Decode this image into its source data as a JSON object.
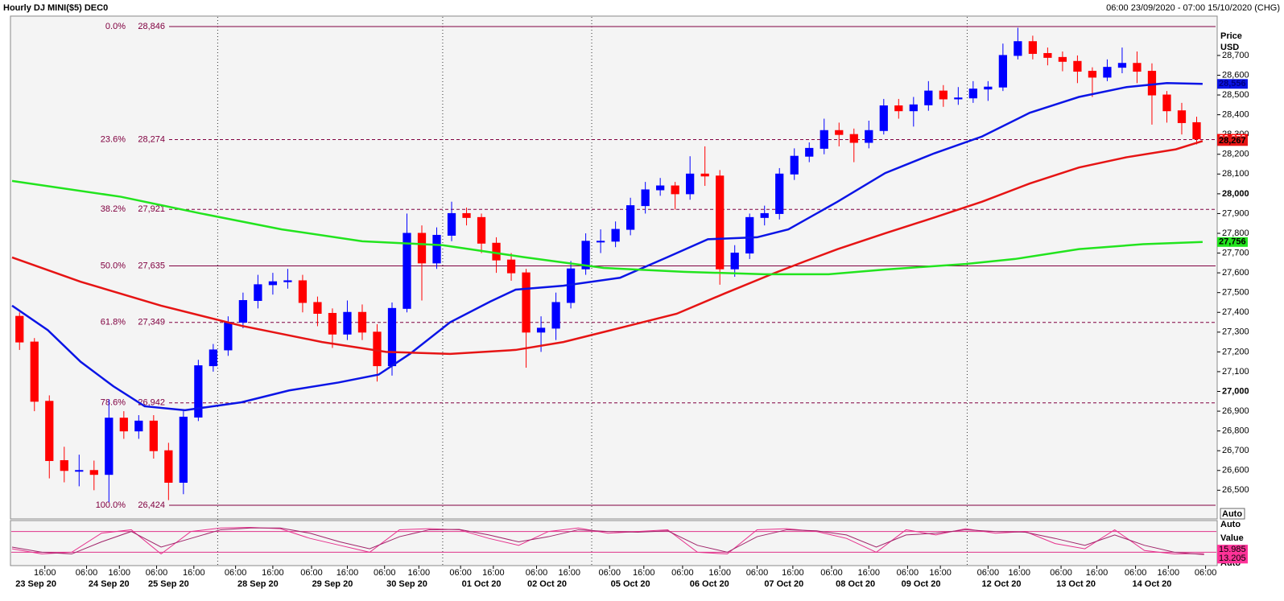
{
  "header": {
    "title": "Hourly DJ MINI($5) DEC0",
    "range": "06:00 23/09/2020 - 07:00 15/10/2020 (CHG)"
  },
  "chart_data": {
    "type": "candlestick",
    "axis_title": "Price",
    "axis_unit": "USD",
    "button": "Auto",
    "xlim": [
      0,
      80.5
    ],
    "ylim": [
      26367,
      28891
    ],
    "yticks": [
      {
        "value": 26500,
        "label": "26,500"
      },
      {
        "value": 26600,
        "label": "26,600"
      },
      {
        "value": 26700,
        "label": "26,700"
      },
      {
        "value": 26800,
        "label": "26,800"
      },
      {
        "value": 26900,
        "label": "26,900"
      },
      {
        "value": 27000,
        "label": "27,000"
      },
      {
        "value": 27100,
        "label": "27,100"
      },
      {
        "value": 27200,
        "label": "27,200"
      },
      {
        "value": 27300,
        "label": "27,300"
      },
      {
        "value": 27400,
        "label": "27,400"
      },
      {
        "value": 27500,
        "label": "27,500"
      },
      {
        "value": 27600,
        "label": "27,600"
      },
      {
        "value": 27700,
        "label": "27,700"
      },
      {
        "value": 27800,
        "label": "27,800"
      },
      {
        "value": 27900,
        "label": "27,900"
      },
      {
        "value": 28000,
        "label": "28,000"
      },
      {
        "value": 28100,
        "label": "28,100"
      },
      {
        "value": 28200,
        "label": "28,200"
      },
      {
        "value": 28300,
        "label": "28,300"
      },
      {
        "value": 28400,
        "label": "28,400"
      },
      {
        "value": 28500,
        "label": "28,500"
      },
      {
        "value": 28600,
        "label": "28,600"
      },
      {
        "value": 28700,
        "label": "28,700"
      }
    ],
    "xticks": [
      {
        "value": 2.2,
        "label": "16:00"
      },
      {
        "value": 5.0,
        "label": "06:00"
      },
      {
        "value": 7.2,
        "label": "16:00"
      },
      {
        "value": 9.7,
        "label": "06:00"
      },
      {
        "value": 12.2,
        "label": "16:00"
      },
      {
        "value": 15.0,
        "label": "06:00"
      },
      {
        "value": 17.5,
        "label": "16:00"
      },
      {
        "value": 20.1,
        "label": "06:00"
      },
      {
        "value": 22.5,
        "label": "16:00"
      },
      {
        "value": 25.0,
        "label": "06:00"
      },
      {
        "value": 27.3,
        "label": "16:00"
      },
      {
        "value": 30.1,
        "label": "06:00"
      },
      {
        "value": 32.3,
        "label": "16:00"
      },
      {
        "value": 35.2,
        "label": "06:00"
      },
      {
        "value": 37.4,
        "label": "16:00"
      },
      {
        "value": 40.1,
        "label": "06:00"
      },
      {
        "value": 42.4,
        "label": "16:00"
      },
      {
        "value": 45.0,
        "label": "06:00"
      },
      {
        "value": 47.5,
        "label": "16:00"
      },
      {
        "value": 50.0,
        "label": "06:00"
      },
      {
        "value": 52.4,
        "label": "16:00"
      },
      {
        "value": 55.0,
        "label": "06:00"
      },
      {
        "value": 57.5,
        "label": "16:00"
      },
      {
        "value": 60.1,
        "label": "06:00"
      },
      {
        "value": 62.3,
        "label": "16:00"
      },
      {
        "value": 65.5,
        "label": "06:00"
      },
      {
        "value": 67.6,
        "label": "16:00"
      },
      {
        "value": 70.4,
        "label": "06:00"
      },
      {
        "value": 72.8,
        "label": "16:00"
      },
      {
        "value": 75.4,
        "label": "06:00"
      },
      {
        "value": 77.6,
        "label": "16:00"
      },
      {
        "value": 80.1,
        "label": "06:00"
      }
    ],
    "date_ticks": [
      {
        "value": 1.6,
        "label": "23 Sep 20"
      },
      {
        "value": 6.5,
        "label": "24 Sep 20"
      },
      {
        "value": 10.5,
        "label": "25 Sep 20"
      },
      {
        "value": 16.5,
        "label": "28 Sep 20"
      },
      {
        "value": 21.5,
        "label": "29 Sep 20"
      },
      {
        "value": 26.5,
        "label": "30 Sep 20"
      },
      {
        "value": 31.5,
        "label": "01 Oct 20"
      },
      {
        "value": 35.9,
        "label": "02 Oct 20"
      },
      {
        "value": 41.5,
        "label": "05 Oct 20"
      },
      {
        "value": 46.8,
        "label": "06 Oct 20"
      },
      {
        "value": 51.8,
        "label": "07 Oct 20"
      },
      {
        "value": 56.6,
        "label": "08 Oct 20"
      },
      {
        "value": 61.0,
        "label": "09 Oct 20"
      },
      {
        "value": 66.4,
        "label": "12 Oct 20"
      },
      {
        "value": 71.4,
        "label": "13 Oct 20"
      },
      {
        "value": 76.5,
        "label": "14 Oct 20"
      }
    ],
    "separators": [
      13.8,
      28.9,
      38.9,
      64.1
    ],
    "up_color": "#0000ff",
    "down_color": "#ff0000",
    "ohlc": [
      [
        27380,
        27400,
        27210,
        27250
      ],
      [
        27250,
        27270,
        26900,
        26950
      ],
      [
        26950,
        26980,
        26560,
        26650
      ],
      [
        26650,
        26720,
        26540,
        26600
      ],
      [
        26600,
        26680,
        26520,
        26600
      ],
      [
        26600,
        26650,
        26500,
        26580
      ],
      [
        26580,
        26960,
        26440,
        26865
      ],
      [
        26865,
        26900,
        26760,
        26800
      ],
      [
        26800,
        26880,
        26760,
        26850
      ],
      [
        26850,
        26880,
        26660,
        26700
      ],
      [
        26700,
        26740,
        26450,
        26540
      ],
      [
        26540,
        26900,
        26480,
        26870
      ],
      [
        26870,
        27160,
        26850,
        27130
      ],
      [
        27130,
        27240,
        27100,
        27210
      ],
      [
        27210,
        27380,
        27180,
        27350
      ],
      [
        27350,
        27500,
        27320,
        27460
      ],
      [
        27460,
        27590,
        27420,
        27540
      ],
      [
        27540,
        27600,
        27490,
        27555
      ],
      [
        27555,
        27620,
        27520,
        27560
      ],
      [
        27560,
        27590,
        27400,
        27450
      ],
      [
        27450,
        27480,
        27330,
        27395
      ],
      [
        27395,
        27420,
        27220,
        27290
      ],
      [
        27290,
        27460,
        27260,
        27400
      ],
      [
        27400,
        27440,
        27260,
        27300
      ],
      [
        27300,
        27340,
        27050,
        27130
      ],
      [
        27130,
        27450,
        27080,
        27420
      ],
      [
        27420,
        27900,
        27400,
        27800
      ],
      [
        27800,
        27840,
        27460,
        27650
      ],
      [
        27650,
        27830,
        27620,
        27790
      ],
      [
        27790,
        27960,
        27760,
        27900
      ],
      [
        27900,
        27930,
        27840,
        27880
      ],
      [
        27880,
        27900,
        27700,
        27750
      ],
      [
        27750,
        27780,
        27600,
        27665
      ],
      [
        27665,
        27700,
        27560,
        27600
      ],
      [
        27600,
        27620,
        27120,
        27300
      ],
      [
        27300,
        27380,
        27200,
        27320
      ],
      [
        27320,
        27500,
        27260,
        27450
      ],
      [
        27450,
        27660,
        27420,
        27620
      ],
      [
        27620,
        27800,
        27590,
        27760
      ],
      [
        27760,
        27820,
        27700,
        27760
      ],
      [
        27760,
        27860,
        27730,
        27820
      ],
      [
        27820,
        27980,
        27790,
        27940
      ],
      [
        27940,
        28060,
        27900,
        28020
      ],
      [
        28020,
        28080,
        27990,
        28040
      ],
      [
        28040,
        28060,
        27920,
        28000
      ],
      [
        28000,
        28190,
        27970,
        28100
      ],
      [
        28100,
        28240,
        28040,
        28090
      ],
      [
        28090,
        28120,
        27540,
        27620
      ],
      [
        27620,
        27740,
        27580,
        27700
      ],
      [
        27700,
        27900,
        27670,
        27880
      ],
      [
        27880,
        27940,
        27840,
        27900
      ],
      [
        27900,
        28130,
        27870,
        28100
      ],
      [
        28100,
        28230,
        28070,
        28190
      ],
      [
        28190,
        28260,
        28160,
        28230
      ],
      [
        28230,
        28380,
        28200,
        28320
      ],
      [
        28320,
        28360,
        28240,
        28300
      ],
      [
        28300,
        28330,
        28160,
        28260
      ],
      [
        28260,
        28370,
        28230,
        28320
      ],
      [
        28320,
        28480,
        28300,
        28445
      ],
      [
        28445,
        28480,
        28380,
        28420
      ],
      [
        28420,
        28490,
        28340,
        28450
      ],
      [
        28450,
        28570,
        28420,
        28520
      ],
      [
        28520,
        28550,
        28440,
        28480
      ],
      [
        28480,
        28540,
        28450,
        28485
      ],
      [
        28485,
        28570,
        28460,
        28530
      ],
      [
        28530,
        28570,
        28470,
        28540
      ],
      [
        28540,
        28760,
        28520,
        28700
      ],
      [
        28700,
        28840,
        28680,
        28770
      ],
      [
        28770,
        28800,
        28680,
        28710
      ],
      [
        28710,
        28740,
        28650,
        28690
      ],
      [
        28690,
        28720,
        28620,
        28670
      ],
      [
        28670,
        28700,
        28560,
        28620
      ],
      [
        28620,
        28640,
        28490,
        28590
      ],
      [
        28590,
        28680,
        28570,
        28640
      ],
      [
        28640,
        28740,
        28610,
        28660
      ],
      [
        28660,
        28720,
        28560,
        28620
      ],
      [
        28620,
        28660,
        28350,
        28500
      ],
      [
        28500,
        28520,
        28360,
        28420
      ],
      [
        28420,
        28460,
        28300,
        28360
      ],
      [
        28360,
        28390,
        28250,
        28278
      ]
    ],
    "lines": [
      {
        "color": "#0a14e6",
        "x": [
          0,
          2.4,
          4.6,
          6.8,
          8.9,
          11.6,
          15.4,
          18.6,
          21.9,
          24.6,
          26.7,
          29.4,
          32.1,
          33.8,
          37,
          40.8,
          44,
          46.7,
          50,
          52.1,
          55.4,
          58.6,
          61.9,
          65.1,
          68.3,
          71.6,
          74.8,
          77.5,
          79.9
        ],
        "values": [
          27434,
          27310,
          27150,
          27026,
          26925,
          26905,
          26945,
          27005,
          27045,
          27085,
          27190,
          27350,
          27455,
          27515,
          27535,
          27575,
          27680,
          27770,
          27780,
          27820,
          27960,
          28105,
          28205,
          28290,
          28410,
          28490,
          28540,
          28560,
          28556
        ]
      },
      {
        "color": "#e61414",
        "x": [
          0,
          4.6,
          10,
          15.4,
          20.8,
          25.1,
          29.4,
          33.8,
          37,
          40.2,
          44.6,
          47.8,
          51.1,
          53.2,
          55.4,
          58.6,
          61.9,
          65.1,
          68.3,
          71.6,
          74.8,
          78.1,
          79.9
        ],
        "values": [
          27678,
          27555,
          27434,
          27332,
          27250,
          27200,
          27190,
          27210,
          27250,
          27310,
          27393,
          27495,
          27597,
          27658,
          27720,
          27800,
          27880,
          27960,
          28052,
          28133,
          28185,
          28225,
          28267
        ]
      },
      {
        "color": "#22e41e",
        "x": [
          0,
          7.3,
          12.7,
          18.1,
          23.5,
          28.9,
          34.3,
          39.7,
          45.1,
          50.5,
          54.8,
          58.6,
          64,
          67.3,
          71.6,
          75.9,
          79.9
        ],
        "values": [
          28065,
          27985,
          27900,
          27820,
          27760,
          27740,
          27680,
          27625,
          27605,
          27593,
          27593,
          27617,
          27645,
          27670,
          27720,
          27745,
          27756
        ]
      }
    ],
    "fib": [
      {
        "ratio": "0.0%",
        "label": "28,846",
        "value": 28846,
        "style": "solid"
      },
      {
        "ratio": "23.6%",
        "label": "28,274",
        "value": 28274,
        "style": "dashed"
      },
      {
        "ratio": "38.2%",
        "label": "27,921",
        "value": 27921,
        "style": "dashed"
      },
      {
        "ratio": "50.0%",
        "label": "27,635",
        "value": 27635,
        "style": "solid"
      },
      {
        "ratio": "61.8%",
        "label": "27,349",
        "value": 27349,
        "style": "dashed"
      },
      {
        "ratio": "78.6%",
        "label": "26,942",
        "value": 26942,
        "style": "dashed"
      },
      {
        "ratio": "100.0%",
        "label": "26,424",
        "value": 26424,
        "style": "solid"
      }
    ],
    "tags": [
      {
        "label": "28,556",
        "value": 28556,
        "color": "#0a14e6",
        "text_color": "#000080"
      },
      {
        "label": "27,756",
        "value": 27756,
        "color": "#22e41e",
        "text_color": "#000000"
      },
      {
        "label": "28,278",
        "value": 28278,
        "color": "#ff0000",
        "text_color": "#ffffff"
      },
      {
        "label": "28,267",
        "value": 28267,
        "color": "#e61414",
        "text_color": "#000000"
      }
    ]
  },
  "oscillator": {
    "type": "line",
    "axis_title": "Value",
    "buttons": [
      "Auto",
      "Auto"
    ],
    "ylim": [
      0,
      100
    ],
    "bands": [
      80,
      20
    ],
    "band_color": "#e0338a",
    "x": [
      0,
      2,
      4,
      6,
      8,
      10,
      12,
      14,
      16,
      18,
      20,
      22,
      24,
      26,
      28,
      30,
      32,
      34,
      36,
      38,
      40,
      42,
      44,
      46,
      48,
      50,
      52,
      54,
      56,
      58,
      60,
      62,
      64,
      66,
      68,
      70,
      72,
      74,
      76,
      78,
      80
    ],
    "series": [
      {
        "color": "#e6308c",
        "values": [
          30,
          15,
          20,
          75,
          85,
          15,
          80,
          90,
          92,
          88,
          60,
          40,
          20,
          85,
          88,
          85,
          60,
          40,
          80,
          90,
          75,
          80,
          85,
          20,
          15,
          85,
          88,
          80,
          60,
          20,
          85,
          70,
          88,
          75,
          80,
          45,
          30,
          85,
          25,
          15,
          15.985
        ]
      },
      {
        "color": "#a0246a",
        "values": [
          35,
          20,
          15,
          50,
          80,
          35,
          60,
          85,
          90,
          90,
          75,
          50,
          30,
          65,
          85,
          86,
          70,
          50,
          65,
          85,
          80,
          78,
          82,
          40,
          20,
          65,
          85,
          82,
          70,
          35,
          70,
          75,
          85,
          80,
          78,
          60,
          40,
          70,
          40,
          20,
          13.205
        ]
      }
    ],
    "tags": [
      15.985,
      13.205
    ],
    "tag_color": "#ff3399"
  }
}
